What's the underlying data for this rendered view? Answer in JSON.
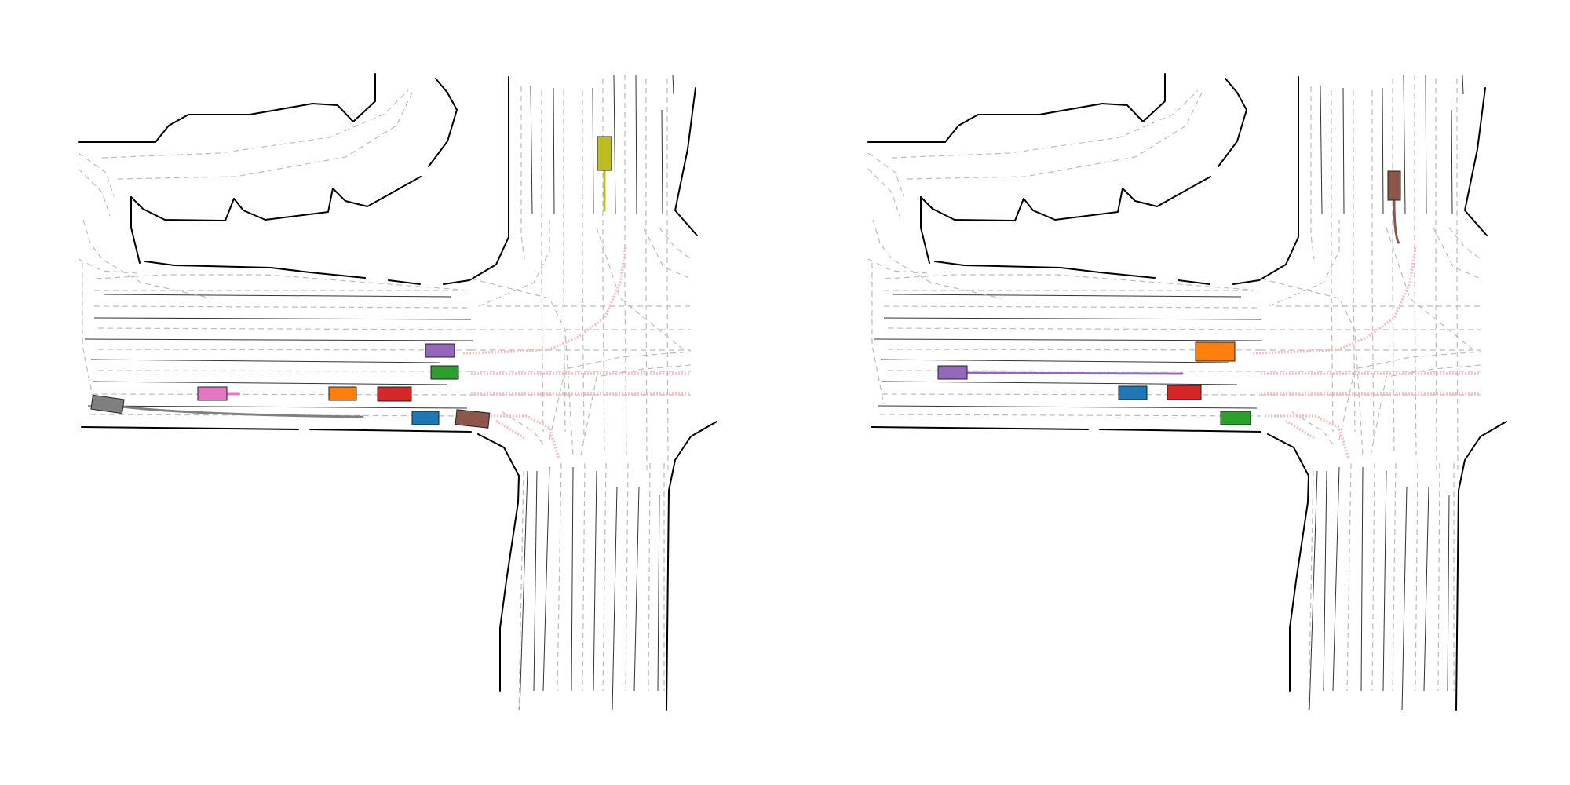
{
  "colors": {
    "blue": "#1f77b4",
    "orange": "#ff7f0e",
    "green": "#2ca02c",
    "red": "#d62728",
    "purple": "#9467bd",
    "brown": "#8c564b",
    "pink": "#e377c2",
    "gray": "#7f7f7f",
    "olive": "#bcbd22",
    "crosswalk": "#f3b8b8"
  },
  "panels": [
    {
      "id": "left"
    },
    {
      "id": "right"
    }
  ]
}
